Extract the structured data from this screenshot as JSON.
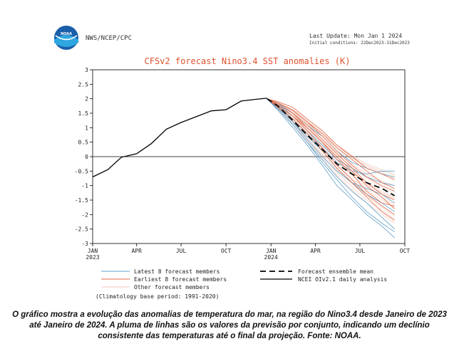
{
  "header": {
    "agency": "NWS/NCEP/CPC",
    "logo_text": "NOAA",
    "last_update": "Last Update: Mon Jan 1 2024",
    "initial_conditions": "Initial conditions: 22Dec2023-31Dec2023"
  },
  "caption": "O gráfico mostra a evolução das anomalias de temperatura do mar, na região do Nino3.4 desde Janeiro de 2023 até Janeiro de 2024. A pluma de linhas são os valores da previsão por conjunto, indicando um declínio consistente das temperaturas até o final da projeção. Fonte: NOAA.",
  "colors": {
    "title": "#e0522f",
    "latest": "#5f9fc7",
    "earliest": "#e06a4a",
    "other": "#f0c8ba",
    "ensemble_mean": "#000000",
    "observed": "#000000"
  },
  "chart_data": {
    "type": "line",
    "title": "CFSv2 forecast Nino3.4 SST anomalies (K)",
    "ylim": [
      -3,
      3
    ],
    "yticks": [
      "3",
      "2.5",
      "2",
      "1.5",
      "1",
      "0.5",
      "0",
      "-0.5",
      "-1",
      "-1.5",
      "-2",
      "-2.5",
      "-3"
    ],
    "xlim": [
      "2023-01-01",
      "2024-10-01"
    ],
    "xticks": [
      {
        "date": "2023-01-01",
        "label": "JAN",
        "sub": "2023"
      },
      {
        "date": "2023-04-01",
        "label": "APR",
        "sub": ""
      },
      {
        "date": "2023-07-01",
        "label": "JUL",
        "sub": ""
      },
      {
        "date": "2023-10-01",
        "label": "OCT",
        "sub": ""
      },
      {
        "date": "2024-01-01",
        "label": "JAN",
        "sub": "2024"
      },
      {
        "date": "2024-04-01",
        "label": "APR",
        "sub": ""
      },
      {
        "date": "2024-07-01",
        "label": "JUL",
        "sub": ""
      },
      {
        "date": "2024-10-01",
        "label": "OCT",
        "sub": ""
      }
    ],
    "observed": {
      "name": "NCEI OIv2.1 daily analysis",
      "x": [
        "2023-01-01",
        "2023-02-01",
        "2023-03-01",
        "2023-04-01",
        "2023-05-01",
        "2023-06-01",
        "2023-07-01",
        "2023-08-01",
        "2023-09-01",
        "2023-10-01",
        "2023-11-01",
        "2023-12-01",
        "2023-12-24"
      ],
      "y": [
        -0.7,
        -0.45,
        -0.02,
        0.1,
        0.45,
        0.95,
        1.18,
        1.38,
        1.58,
        1.62,
        1.92,
        1.98,
        2.02
      ]
    },
    "ensemble_mean": {
      "name": "Forecast ensemble mean",
      "x": [
        "2023-12-24",
        "2024-01-15",
        "2024-02-15",
        "2024-03-15",
        "2024-04-15",
        "2024-05-15",
        "2024-06-15",
        "2024-07-15",
        "2024-08-15",
        "2024-09-10"
      ],
      "y": [
        2.0,
        1.75,
        1.25,
        0.75,
        0.25,
        -0.25,
        -0.6,
        -0.9,
        -1.1,
        -1.35
      ]
    },
    "members": {
      "x": [
        "2023-12-24",
        "2024-01-15",
        "2024-02-15",
        "2024-03-15",
        "2024-04-15",
        "2024-05-15",
        "2024-06-15",
        "2024-07-15",
        "2024-08-15",
        "2024-09-10"
      ],
      "latest": {
        "name": "Latest 8 forecast members",
        "runs": [
          [
            2.0,
            1.65,
            1.1,
            0.5,
            -0.1,
            -0.7,
            -1.2,
            -1.6,
            -2.1,
            -2.5
          ],
          [
            2.0,
            1.7,
            1.2,
            0.7,
            0.2,
            -0.4,
            -0.9,
            -1.3,
            -1.6,
            -1.9
          ],
          [
            2.0,
            1.8,
            1.4,
            0.9,
            0.4,
            -0.1,
            -0.4,
            -0.7,
            -0.9,
            -1.0
          ],
          [
            2.0,
            1.6,
            1.0,
            0.4,
            -0.3,
            -1.0,
            -1.5,
            -2.0,
            -2.4,
            -2.8
          ],
          [
            2.0,
            1.75,
            1.3,
            0.8,
            0.3,
            -0.2,
            -0.5,
            -0.6,
            -0.5,
            -0.5
          ],
          [
            2.0,
            1.7,
            1.2,
            0.6,
            0.0,
            -0.5,
            -0.9,
            -1.1,
            -1.3,
            -1.6
          ],
          [
            2.0,
            1.85,
            1.5,
            1.1,
            0.7,
            0.2,
            -0.2,
            -0.4,
            -0.6,
            -0.7
          ],
          [
            2.0,
            1.65,
            1.1,
            0.5,
            -0.2,
            -0.8,
            -1.4,
            -1.9,
            -2.3,
            -2.6
          ]
        ]
      },
      "earliest": {
        "name": "Earliest 8 forecast members",
        "runs": [
          [
            2.0,
            1.8,
            1.5,
            1.0,
            0.5,
            0.0,
            -0.5,
            -1.0,
            -1.4,
            -1.8
          ],
          [
            2.0,
            1.85,
            1.6,
            1.2,
            0.7,
            0.2,
            -0.3,
            -0.7,
            -1.0,
            -1.2
          ],
          [
            2.0,
            1.75,
            1.4,
            0.9,
            0.3,
            -0.3,
            -0.8,
            -1.3,
            -1.7,
            -2.0
          ],
          [
            2.0,
            1.9,
            1.7,
            1.3,
            0.9,
            0.4,
            0.0,
            -0.4,
            -0.6,
            -0.8
          ],
          [
            2.0,
            1.8,
            1.5,
            1.1,
            0.6,
            0.1,
            -0.4,
            -0.9,
            -1.3,
            -1.5
          ],
          [
            2.0,
            1.7,
            1.3,
            0.8,
            0.2,
            -0.4,
            -0.9,
            -1.4,
            -1.9,
            -2.2
          ],
          [
            2.0,
            1.85,
            1.6,
            1.2,
            0.8,
            0.3,
            -0.1,
            -0.5,
            -0.9,
            -1.1
          ],
          [
            2.0,
            1.75,
            1.4,
            1.0,
            0.5,
            -0.1,
            -0.6,
            -1.2,
            -1.6,
            -1.7
          ]
        ]
      },
      "other": {
        "name": "Other forecast members",
        "runs": [
          [
            2.0,
            1.78,
            1.45,
            1.0,
            0.55,
            0.05,
            -0.35,
            -0.75,
            -1.05,
            -1.3
          ],
          [
            2.0,
            1.72,
            1.3,
            0.85,
            0.35,
            -0.2,
            -0.65,
            -1.05,
            -1.4,
            -1.65
          ],
          [
            2.0,
            1.82,
            1.55,
            1.15,
            0.75,
            0.3,
            -0.05,
            -0.35,
            -0.55,
            -0.75
          ],
          [
            2.0,
            1.68,
            1.2,
            0.65,
            0.1,
            -0.45,
            -0.95,
            -1.35,
            -1.75,
            -2.05
          ],
          [
            2.0,
            1.88,
            1.62,
            1.25,
            0.85,
            0.4,
            0.05,
            -0.25,
            -0.45,
            -0.6
          ],
          [
            2.0,
            1.74,
            1.35,
            0.9,
            0.4,
            -0.1,
            -0.55,
            -0.95,
            -1.25,
            -1.45
          ],
          [
            2.0,
            1.66,
            1.15,
            0.6,
            0.05,
            -0.55,
            -1.05,
            -1.5,
            -1.85,
            -2.15
          ],
          [
            2.0,
            1.8,
            1.5,
            1.05,
            0.6,
            0.15,
            -0.25,
            -0.6,
            -0.85,
            -1.0
          ],
          [
            2.0,
            1.76,
            1.4,
            0.95,
            0.45,
            -0.05,
            -0.5,
            -0.9,
            -1.2,
            -1.4
          ],
          [
            2.0,
            1.7,
            1.25,
            0.75,
            0.25,
            -0.3,
            -0.75,
            -1.15,
            -1.5,
            -1.75
          ],
          [
            2.0,
            1.84,
            1.58,
            1.2,
            0.8,
            0.35,
            0.0,
            -0.3,
            -0.5,
            -0.65
          ],
          [
            2.0,
            1.64,
            1.1,
            0.55,
            -0.05,
            -0.65,
            -1.15,
            -1.6,
            -2.0,
            -2.3
          ]
        ]
      }
    },
    "legend": {
      "entries": [
        {
          "key": "latest",
          "label": "Latest 8 forecast members"
        },
        {
          "key": "earliest",
          "label": "Earliest 8 forecast members"
        },
        {
          "key": "other",
          "label": "Other forecast members"
        },
        {
          "key": "mean",
          "label": "Forecast ensemble mean"
        },
        {
          "key": "observed",
          "label": "NCEI OIv2.1 daily analysis"
        }
      ],
      "note": "(Climatology base period: 1991-2020)",
      "placement": "bottom"
    },
    "grid": false,
    "zero_line": true
  }
}
